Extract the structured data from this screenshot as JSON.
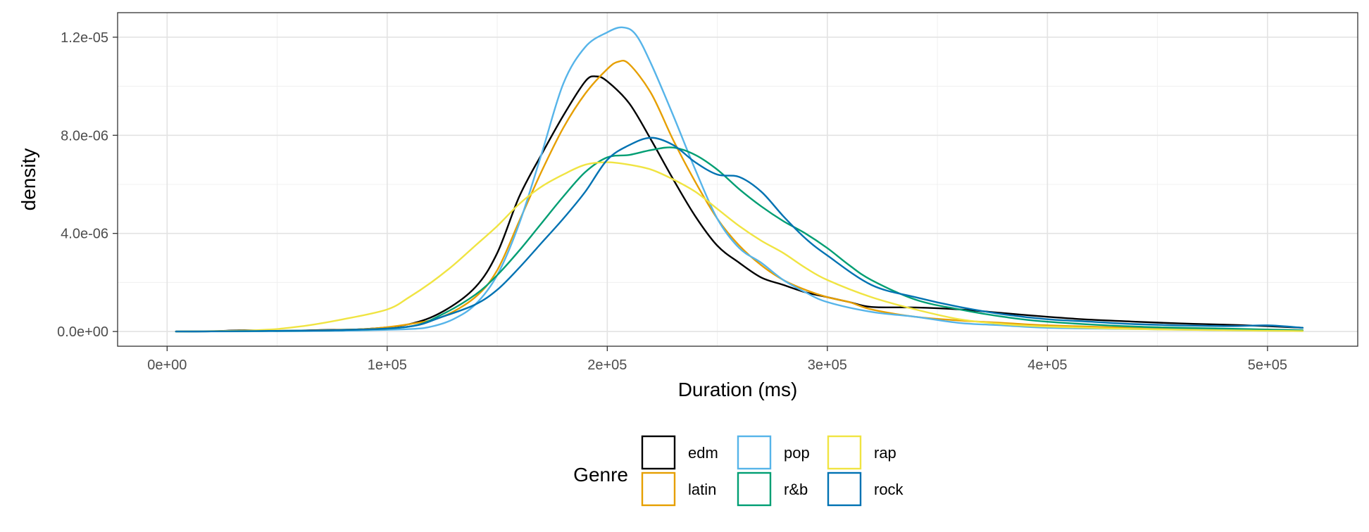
{
  "chart_data": {
    "type": "line",
    "title": "",
    "xlabel": "Duration (ms)",
    "ylabel": "density",
    "xlim": [
      -22500,
      541000
    ],
    "ylim": [
      -6e-07,
      1.3e-05
    ],
    "x_ticks": [
      0,
      100000,
      200000,
      300000,
      400000,
      500000
    ],
    "x_tick_labels": [
      "0e+00",
      "1e+05",
      "2e+05",
      "3e+05",
      "4e+05",
      "5e+05"
    ],
    "y_ticks": [
      0,
      4e-06,
      8e-06,
      1.2e-05
    ],
    "y_tick_labels": [
      "0.0e+00",
      "4.0e-06",
      "8.0e-06",
      "1.2e-05"
    ],
    "grid": true,
    "legend": {
      "title": "Genre",
      "position": "bottom",
      "entries": [
        "edm",
        "latin",
        "pop",
        "r&b",
        "rap",
        "rock"
      ]
    },
    "series": [
      {
        "name": "edm",
        "color": "#000000",
        "x": [
          4000,
          20000,
          35000,
          50000,
          70000,
          90000,
          110000,
          125000,
          140000,
          150000,
          160000,
          170000,
          180000,
          190000,
          195000,
          200000,
          210000,
          220000,
          230000,
          240000,
          250000,
          260000,
          270000,
          280000,
          290000,
          300000,
          310000,
          320000,
          340000,
          360000,
          380000,
          400000,
          420000,
          440000,
          460000,
          480000,
          500000,
          516000
        ],
        "y": [
          0.0,
          1e-08,
          5e-08,
          2e-08,
          6e-08,
          1e-07,
          3e-07,
          8e-07,
          1.8e-06,
          3.2e-06,
          5.5e-06,
          7.2e-06,
          8.8e-06,
          1.02e-05,
          1.04e-05,
          1.02e-05,
          9.3e-06,
          7.8e-06,
          6.2e-06,
          4.7e-06,
          3.5e-06,
          2.8e-06,
          2.2e-06,
          1.9e-06,
          1.6e-06,
          1.4e-06,
          1.2e-06,
          1e-06,
          9.8e-07,
          9e-07,
          7.5e-07,
          6e-07,
          4.8e-07,
          4e-07,
          3.3e-07,
          2.8e-07,
          2.2e-07,
          1.5e-07
        ]
      },
      {
        "name": "latin",
        "color": "#E69F00",
        "x": [
          4000,
          30000,
          60000,
          90000,
          110000,
          125000,
          140000,
          150000,
          160000,
          170000,
          180000,
          190000,
          200000,
          205000,
          210000,
          220000,
          230000,
          240000,
          250000,
          260000,
          270000,
          280000,
          290000,
          300000,
          310000,
          320000,
          340000,
          360000,
          380000,
          400000,
          440000,
          480000,
          516000
        ],
        "y": [
          0.0,
          2e-08,
          4e-08,
          1e-07,
          3e-07,
          6e-07,
          1.4e-06,
          2.5e-06,
          4.5e-06,
          6.5e-06,
          8.3e-06,
          9.7e-06,
          1.07e-05,
          1.1e-05,
          1.09e-05,
          9.7e-06,
          7.8e-06,
          6.1e-06,
          4.6e-06,
          3.5e-06,
          2.7e-06,
          2.1e-06,
          1.7e-06,
          1.4e-06,
          1.2e-06,
          9e-07,
          6e-07,
          4.5e-07,
          3.5e-07,
          2.5e-07,
          1.5e-07,
          1e-07,
          5e-08
        ]
      },
      {
        "name": "pop",
        "color": "#56B4E9",
        "x": [
          4000,
          40000,
          80000,
          110000,
          120000,
          130000,
          140000,
          150000,
          160000,
          170000,
          180000,
          190000,
          200000,
          207000,
          213000,
          220000,
          230000,
          240000,
          250000,
          260000,
          270000,
          280000,
          290000,
          300000,
          320000,
          340000,
          360000,
          380000,
          400000,
          440000,
          480000,
          516000
        ],
        "y": [
          0.0,
          1e-08,
          3e-08,
          1e-07,
          2e-07,
          5e-07,
          1.1e-06,
          2.3e-06,
          4.4e-06,
          7.2e-06,
          1.01e-05,
          1.16e-05,
          1.22e-05,
          1.24e-05,
          1.21e-05,
          1.09e-05,
          8.8e-06,
          6.6e-06,
          4.6e-06,
          3.4e-06,
          2.8e-06,
          2.1e-06,
          1.6e-06,
          1.2e-06,
          8e-07,
          6e-07,
          3.5e-07,
          2.5e-07,
          1.5e-07,
          1e-07,
          5e-08,
          2e-08
        ]
      },
      {
        "name": "r&b",
        "color": "#009E73",
        "x": [
          4000,
          40000,
          80000,
          110000,
          125000,
          140000,
          150000,
          160000,
          170000,
          180000,
          190000,
          200000,
          210000,
          220000,
          230000,
          240000,
          250000,
          260000,
          270000,
          280000,
          290000,
          300000,
          310000,
          320000,
          340000,
          360000,
          380000,
          400000,
          440000,
          480000,
          516000
        ],
        "y": [
          0.0,
          2e-08,
          6e-08,
          2e-07,
          7e-07,
          1.5e-06,
          2.3e-06,
          3.3e-06,
          4.4e-06,
          5.5e-06,
          6.5e-06,
          7.1e-06,
          7.2e-06,
          7.4e-06,
          7.5e-06,
          7.2e-06,
          6.6e-06,
          5.8e-06,
          5.1e-06,
          4.5e-06,
          4e-06,
          3.4e-06,
          2.7e-06,
          2.1e-06,
          1.3e-06,
          9e-07,
          6e-07,
          4e-07,
          2e-07,
          1.2e-07,
          5e-08
        ]
      },
      {
        "name": "rap",
        "color": "#F0E442",
        "x": [
          4000,
          40000,
          60000,
          80000,
          100000,
          110000,
          120000,
          130000,
          140000,
          150000,
          160000,
          170000,
          180000,
          190000,
          200000,
          210000,
          220000,
          230000,
          240000,
          250000,
          260000,
          270000,
          280000,
          290000,
          300000,
          320000,
          340000,
          360000,
          380000,
          400000,
          440000,
          480000,
          516000
        ],
        "y": [
          0.0,
          5e-08,
          2e-07,
          5e-07,
          9e-07,
          1.4e-06,
          2e-06,
          2.7e-06,
          3.5e-06,
          4.3e-06,
          5.2e-06,
          5.9e-06,
          6.4e-06,
          6.8e-06,
          6.9e-06,
          6.8e-06,
          6.6e-06,
          6.2e-06,
          5.7e-06,
          5e-06,
          4.3e-06,
          3.7e-06,
          3.2e-06,
          2.6e-06,
          2.1e-06,
          1.4e-06,
          9e-07,
          5e-07,
          3e-07,
          2e-07,
          1e-07,
          5e-08,
          2e-08
        ]
      },
      {
        "name": "rock",
        "color": "#0072B2",
        "x": [
          4000,
          40000,
          80000,
          110000,
          125000,
          140000,
          150000,
          160000,
          170000,
          180000,
          190000,
          200000,
          210000,
          220000,
          230000,
          240000,
          250000,
          260000,
          270000,
          280000,
          290000,
          300000,
          320000,
          340000,
          360000,
          380000,
          400000,
          420000,
          440000,
          480000,
          500000,
          516000
        ],
        "y": [
          0.0,
          2e-08,
          6e-08,
          2e-07,
          6e-07,
          1.1e-06,
          1.7e-06,
          2.6e-06,
          3.6e-06,
          4.6e-06,
          5.7e-06,
          7e-06,
          7.6e-06,
          7.9e-06,
          7.6e-06,
          6.9e-06,
          6.4e-06,
          6.3e-06,
          5.7e-06,
          4.7e-06,
          3.8e-06,
          3.1e-06,
          1.9e-06,
          1.4e-06,
          1e-06,
          7e-07,
          5e-07,
          4e-07,
          3e-07,
          2.2e-07,
          2.5e-07,
          1.5e-07
        ]
      }
    ]
  }
}
